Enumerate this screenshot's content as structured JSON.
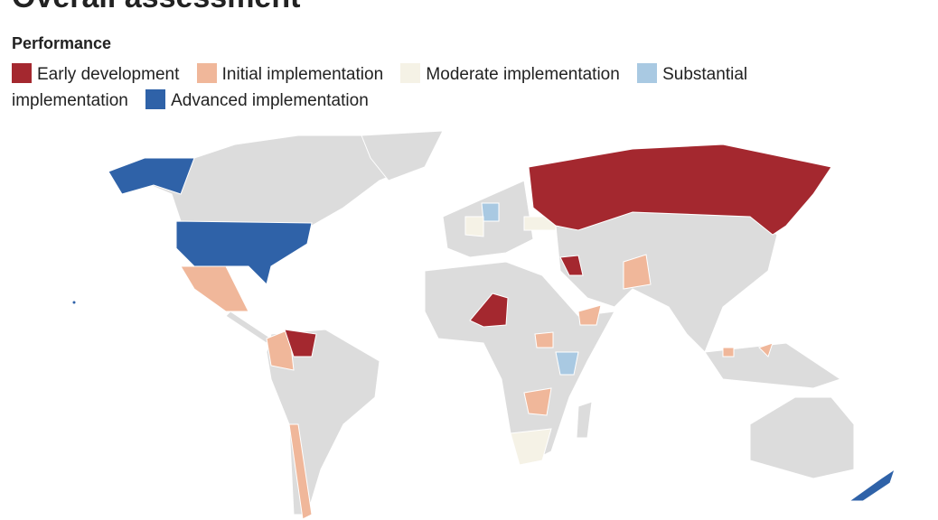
{
  "header": {
    "title": "Overall assessment"
  },
  "legend": {
    "title": "Performance",
    "items": [
      {
        "label": "Early development",
        "color": "#a4282f"
      },
      {
        "label": "Initial implementation",
        "color": "#f0b79a"
      },
      {
        "label": "Moderate implementation",
        "color": "#f5f2e6"
      },
      {
        "label": "Substantial implementation",
        "color": "#a9c9e2"
      },
      {
        "label": "Advanced implementation",
        "color": "#2f62a8"
      }
    ]
  }
}
